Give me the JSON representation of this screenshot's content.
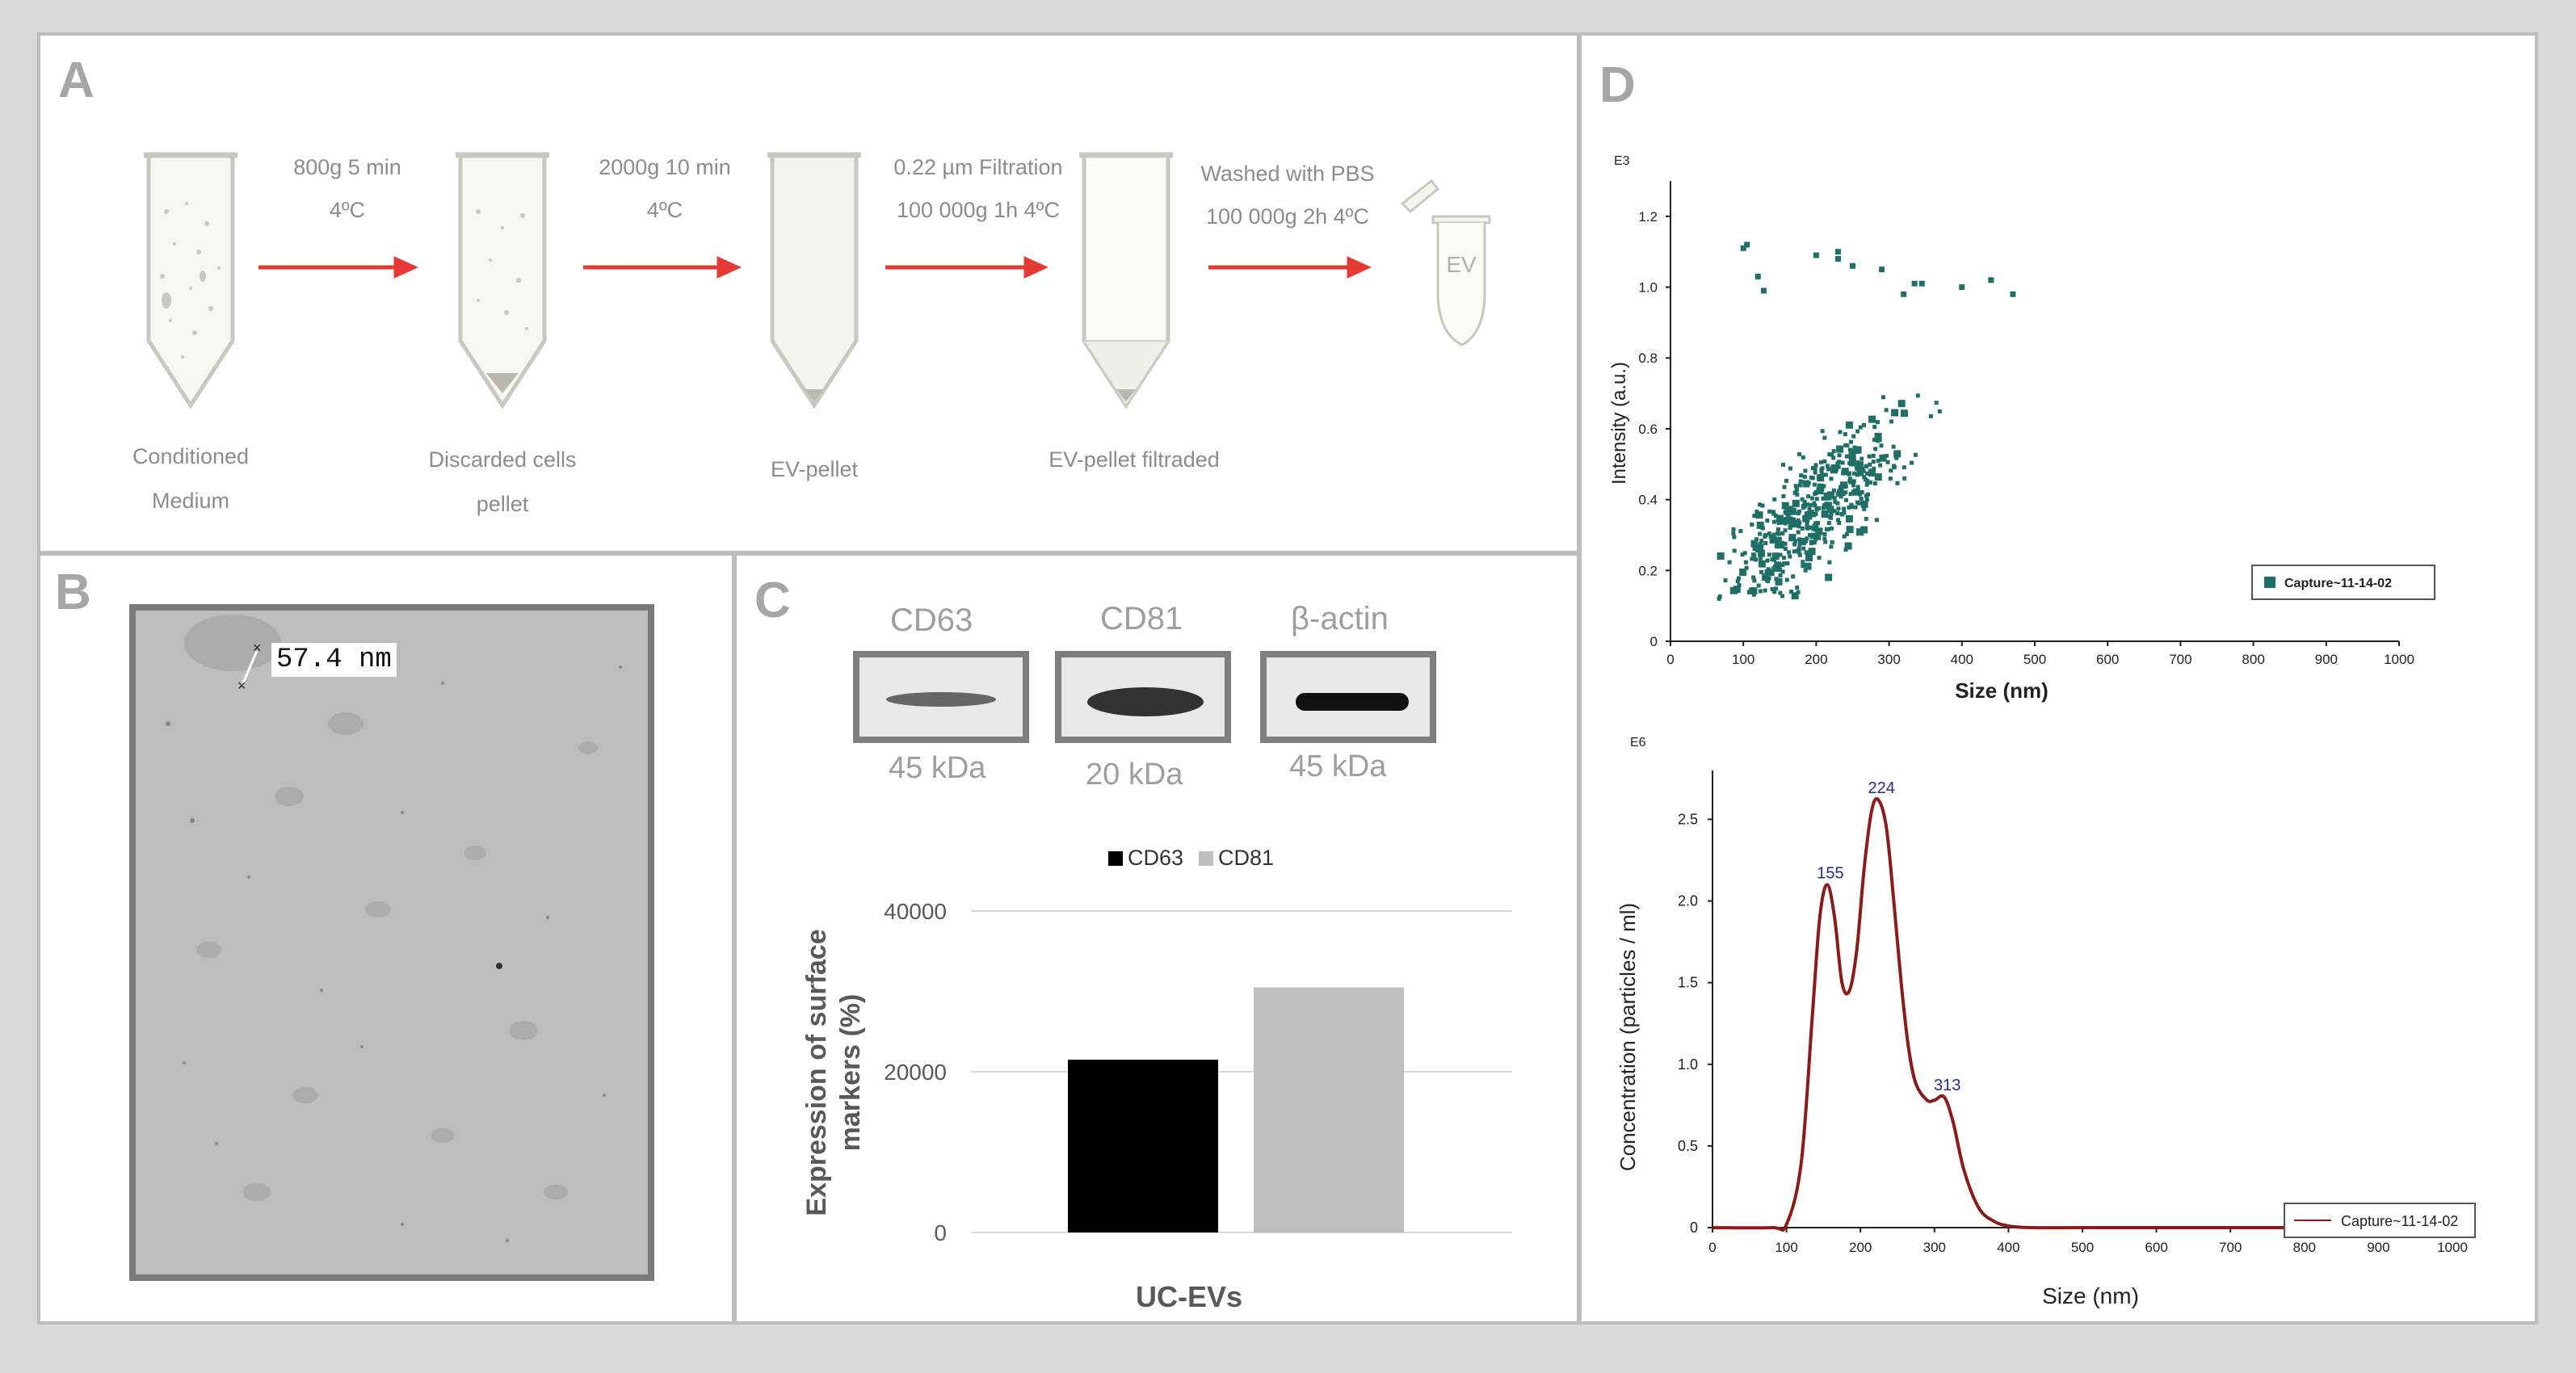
{
  "panels": {
    "a": "A",
    "b": "B",
    "c": "C",
    "d": "D"
  },
  "panel_a": {
    "steps": [
      {
        "line1": "800g 5 min",
        "line2": "4ºC"
      },
      {
        "line1": "2000g 10 min",
        "line2": "4ºC"
      },
      {
        "line1": "0.22 µm Filtration",
        "line2": "100 000g 1h 4ºC"
      },
      {
        "line1": "Washed with PBS",
        "line2": "100 000g 2h 4ºC"
      }
    ],
    "tubes": [
      {
        "line1": "Conditioned",
        "line2": "Medium"
      },
      {
        "line1": "Discarded cells",
        "line2": "pellet"
      },
      {
        "line1": "EV-pellet",
        "line2": ""
      },
      {
        "line1": "EV-pellet filtraded",
        "line2": ""
      }
    ],
    "ev_label": "EV"
  },
  "panel_b": {
    "scale_label": "57.4 nm"
  },
  "panel_c": {
    "blots": [
      {
        "name": "CD63",
        "kda": "45 kDa"
      },
      {
        "name": "CD81",
        "kda": "20 kDa"
      },
      {
        "name": "β-actin",
        "kda": "45 kDa"
      }
    ],
    "chart_data": {
      "type": "bar",
      "title": "",
      "categories": [
        "UC-EVs"
      ],
      "series": [
        {
          "name": "CD63",
          "values": [
            21500
          ],
          "color": "#000000"
        },
        {
          "name": "CD81",
          "values": [
            30500
          ],
          "color": "#bfbfbf"
        }
      ],
      "xlabel": "UC-EVs",
      "ylabel": "Expression of surface markers (%)",
      "ylabel_line1": "Expression of surface",
      "ylabel_line2": "markers (%)",
      "ylim": [
        0,
        40000
      ],
      "yticks": [
        0,
        20000,
        40000
      ],
      "legend": "top"
    }
  },
  "panel_d": {
    "scatter": {
      "type": "scatter",
      "exponent_label": "E3",
      "xlabel": "Size (nm)",
      "ylabel": "Intensity (a.u.)",
      "xlim": [
        0,
        1000
      ],
      "ylim": [
        0,
        1.3
      ],
      "xticks": [
        0,
        100,
        200,
        300,
        400,
        500,
        600,
        700,
        800,
        900,
        1000
      ],
      "yticks": [
        "0",
        "0.2",
        "0.4",
        "0.6",
        "0.8",
        "1.0",
        "1.2"
      ],
      "legend": "Capture~11-14-02",
      "color": "#1f6f66",
      "outliers": [
        [
          100,
          1.11
        ],
        [
          105,
          1.12
        ],
        [
          120,
          1.03
        ],
        [
          128,
          0.99
        ],
        [
          230,
          1.08
        ],
        [
          230,
          1.1
        ],
        [
          290,
          1.05
        ],
        [
          320,
          0.98
        ],
        [
          335,
          1.01
        ],
        [
          345,
          1.01
        ],
        [
          400,
          1.0
        ],
        [
          440,
          1.02
        ],
        [
          470,
          0.98
        ],
        [
          200,
          1.09
        ],
        [
          250,
          1.06
        ]
      ]
    },
    "line": {
      "type": "line",
      "exponent_label": "E6",
      "xlabel": "Size (nm)",
      "ylabel": "Concentration (particles / ml)",
      "xlim": [
        0,
        1000
      ],
      "ylim": [
        0,
        2.7
      ],
      "xticks": [
        0,
        100,
        200,
        300,
        400,
        500,
        600,
        700,
        800,
        900,
        1000
      ],
      "yticks": [
        "0",
        "0.5",
        "1.0",
        "1.5",
        "2.0",
        "2.5"
      ],
      "peaks": [
        {
          "x": 155,
          "label": "155"
        },
        {
          "x": 224,
          "label": "224"
        },
        {
          "x": 313,
          "label": "313"
        }
      ],
      "x": [
        0,
        80,
        100,
        120,
        135,
        145,
        155,
        165,
        175,
        185,
        195,
        205,
        215,
        224,
        235,
        245,
        255,
        265,
        275,
        290,
        300,
        313,
        325,
        340,
        360,
        380,
        400,
        430,
        500,
        600,
        1000
      ],
      "y": [
        0,
        0,
        0.02,
        0.4,
        1.3,
        1.9,
        2.1,
        1.9,
        1.5,
        1.45,
        1.7,
        2.2,
        2.55,
        2.62,
        2.45,
        2.0,
        1.5,
        1.1,
        0.88,
        0.78,
        0.78,
        0.8,
        0.65,
        0.35,
        0.12,
        0.04,
        0.01,
        0.0,
        0,
        0,
        0
      ],
      "legend": "Capture~11-14-02",
      "color": "#8b1a1a"
    }
  }
}
